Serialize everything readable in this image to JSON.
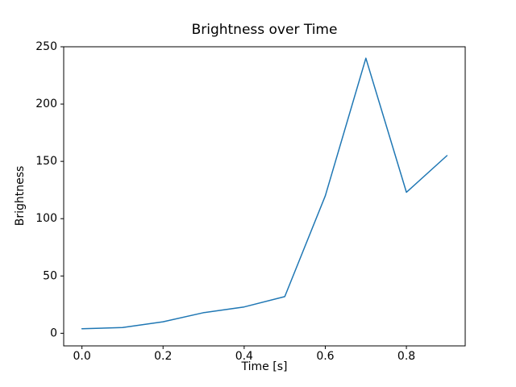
{
  "figure": {
    "background": "#ffffff",
    "text_color": "#000000"
  },
  "chart_data": {
    "type": "line",
    "title": "Brightness over Time",
    "xlabel": "Time [s]",
    "ylabel": "Brightness",
    "x": [
      0.0,
      0.1,
      0.2,
      0.3,
      0.4,
      0.5,
      0.6,
      0.7,
      0.8,
      0.9
    ],
    "series": [
      {
        "name": "Brightness",
        "values": [
          4,
          5,
          10,
          18,
          23,
          32,
          120,
          240,
          123,
          155
        ]
      }
    ],
    "xticks": {
      "values": [
        0.0,
        0.2,
        0.4,
        0.6,
        0.8
      ],
      "labels": [
        "0.0",
        "0.2",
        "0.4",
        "0.6",
        "0.8"
      ]
    },
    "yticks": {
      "values": [
        0,
        50,
        100,
        150,
        200,
        250
      ],
      "labels": [
        "0",
        "50",
        "100",
        "150",
        "200",
        "250"
      ]
    },
    "xlim": [
      -0.045,
      0.945
    ],
    "ylim": [
      -11,
      250
    ],
    "grid": false,
    "legend": "none",
    "line_color": "#1f77b4",
    "line_width": 1.5,
    "spine_color": "#000000"
  }
}
